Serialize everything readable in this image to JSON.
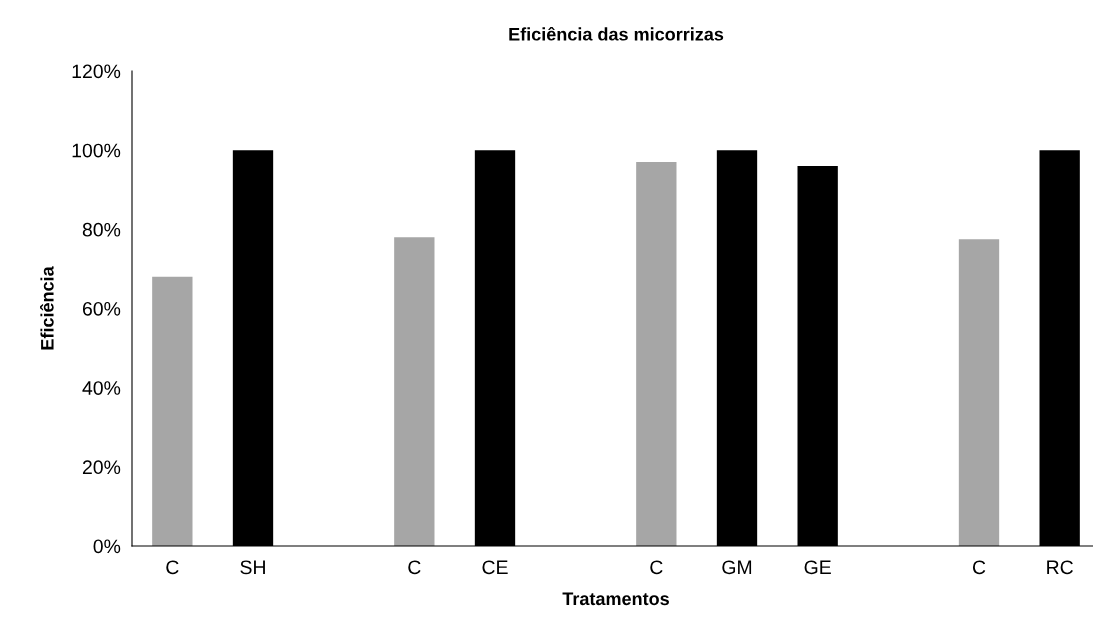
{
  "chart_data": {
    "type": "bar",
    "title": "Eficiência das micorrizas",
    "xlabel": "Tratamentos",
    "ylabel": "Eficiência",
    "categories": [
      "C",
      "SH",
      null,
      "C",
      "CE",
      null,
      "C",
      "GM",
      "GE",
      null,
      "C",
      "RC"
    ],
    "values": [
      68,
      100,
      null,
      78,
      100,
      null,
      97,
      100,
      96,
      null,
      77.5,
      100
    ],
    "colors": [
      "#a6a6a6",
      "#000000",
      null,
      "#a6a6a6",
      "#000000",
      null,
      "#a6a6a6",
      "#000000",
      "#000000",
      null,
      "#a6a6a6",
      "#000000"
    ],
    "ylim": [
      0,
      120
    ],
    "yticks": [
      {
        "value": 0,
        "label": "0%"
      },
      {
        "value": 20,
        "label": "20%"
      },
      {
        "value": 40,
        "label": "40%"
      },
      {
        "value": 60,
        "label": "60%"
      },
      {
        "value": 80,
        "label": "80%"
      },
      {
        "value": 100,
        "label": "100%"
      },
      {
        "value": 120,
        "label": "120%"
      }
    ],
    "grid": false,
    "legend": false
  }
}
